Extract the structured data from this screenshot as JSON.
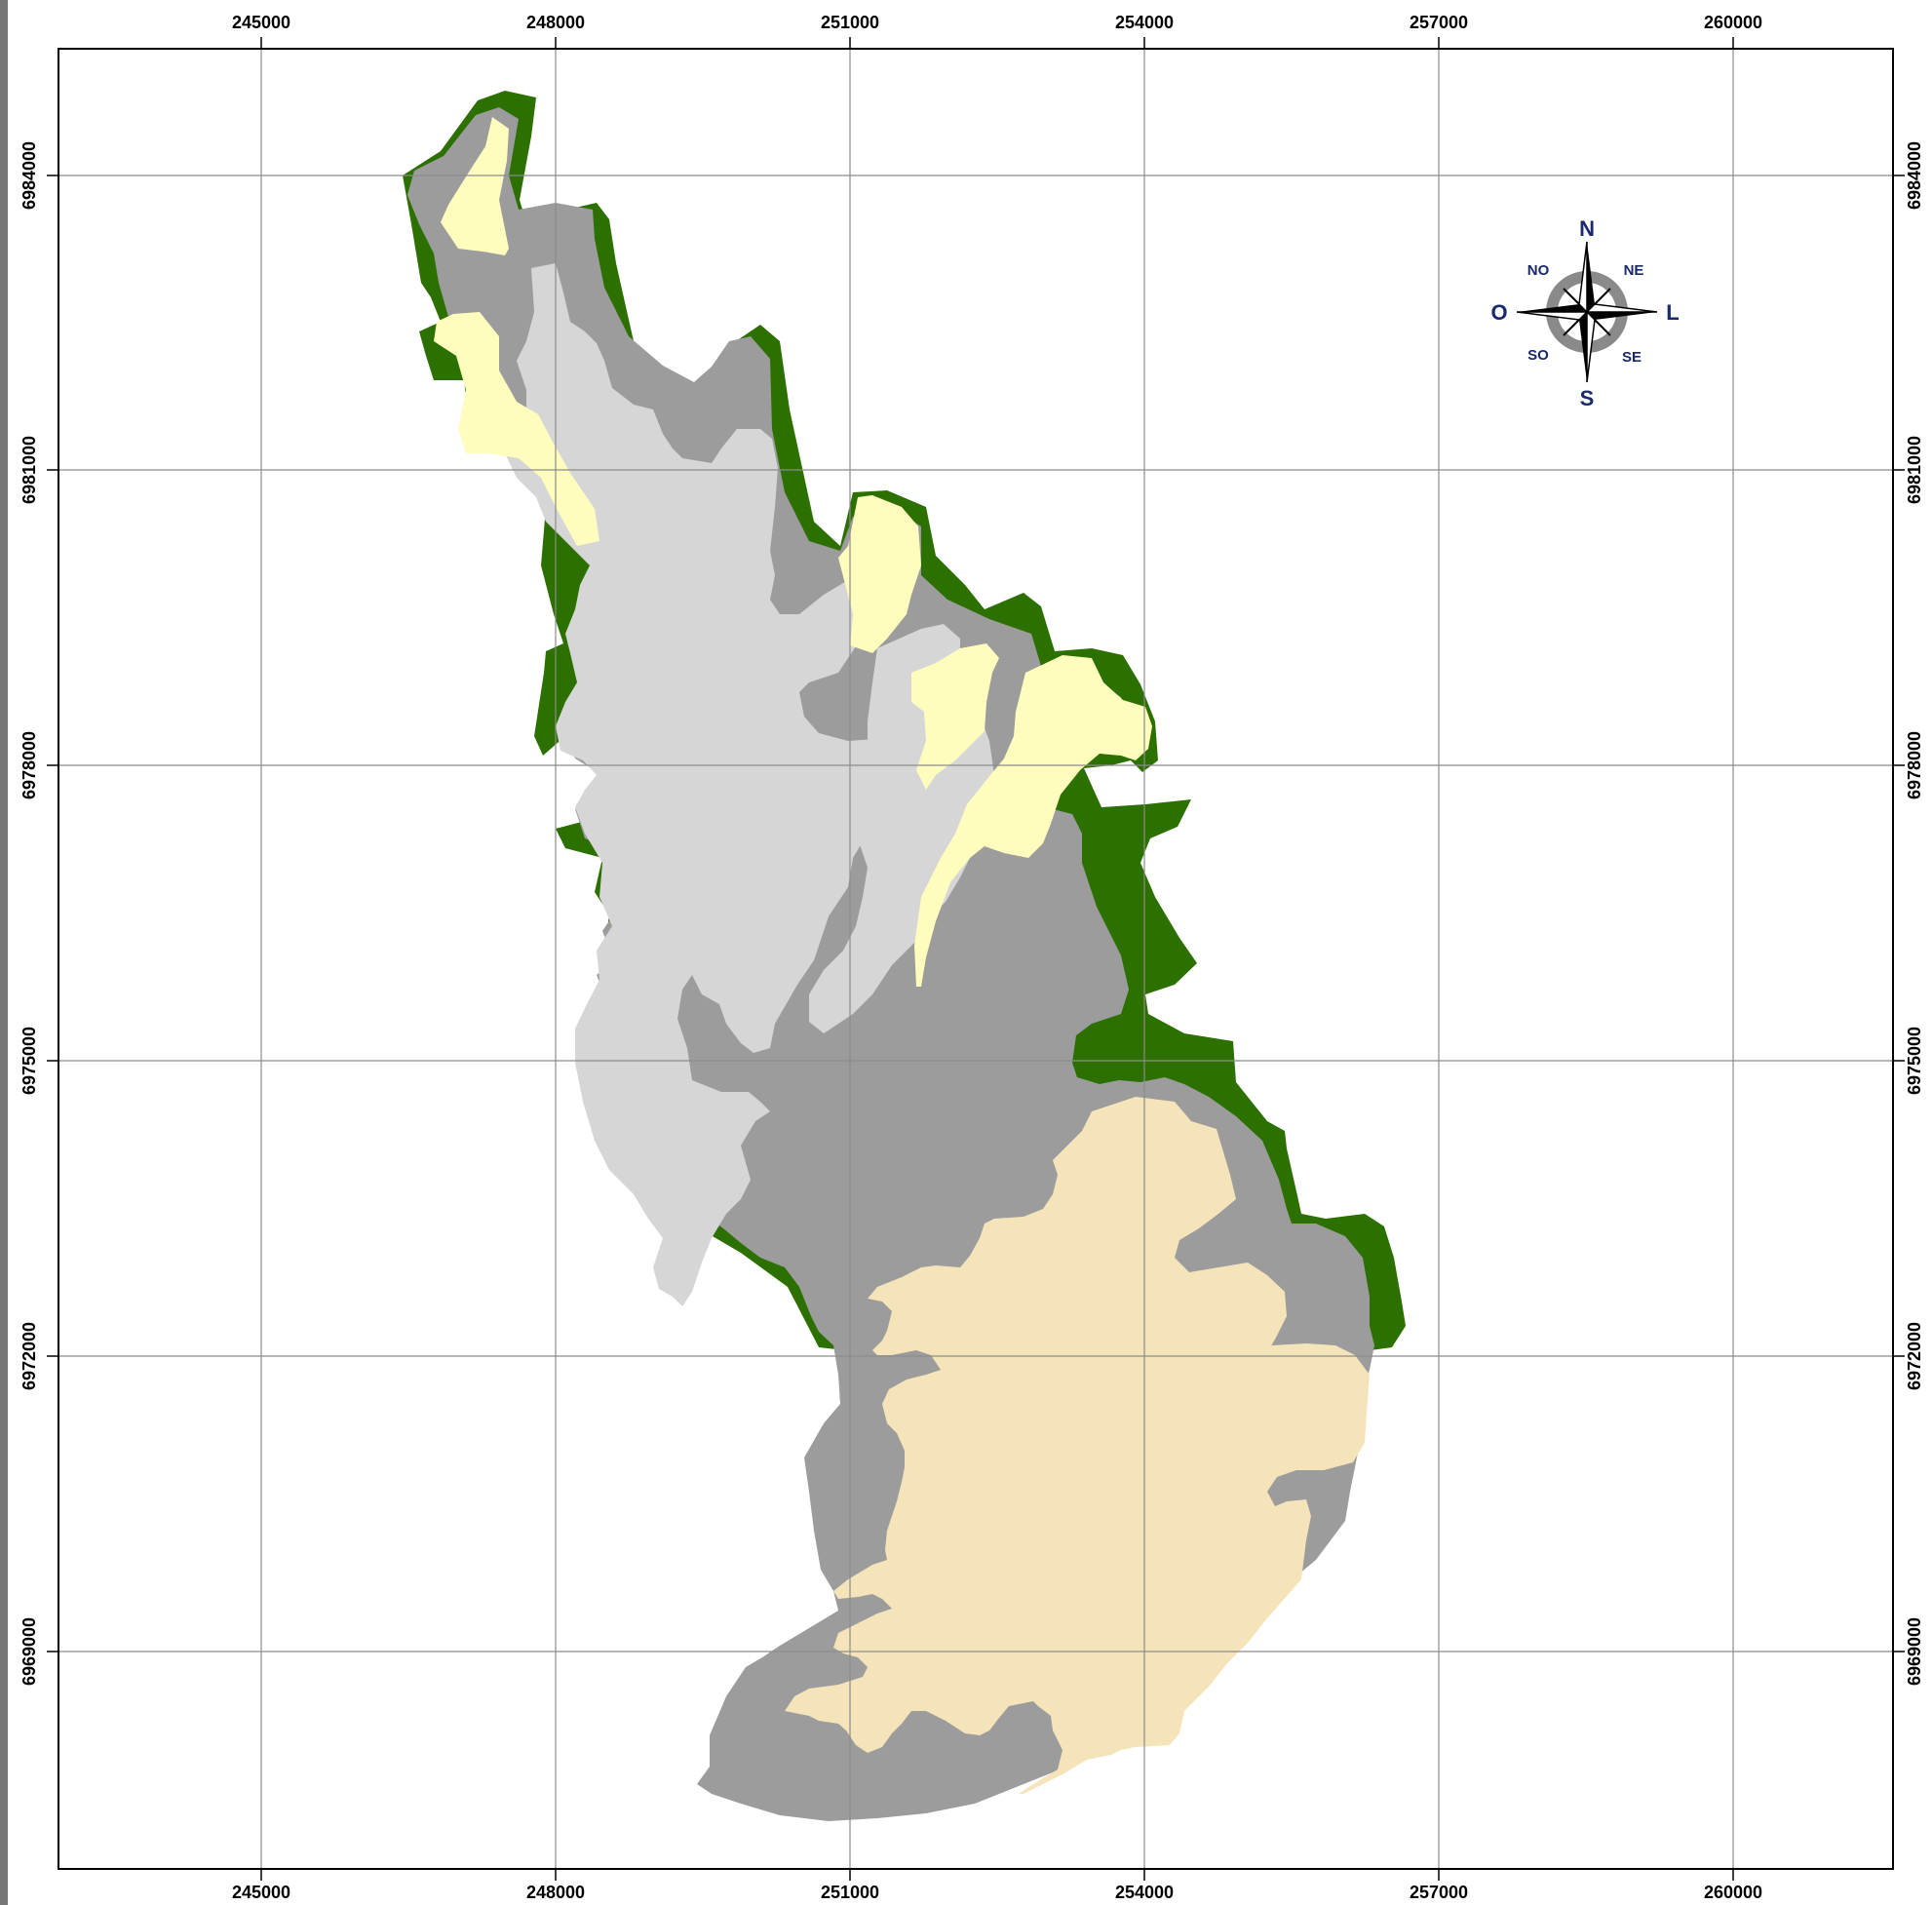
{
  "map": {
    "grid_x_labels": [
      "245000",
      "248000",
      "251000",
      "254000",
      "257000",
      "260000"
    ],
    "grid_y_labels": [
      "6984000",
      "6981000",
      "6978000",
      "6975000",
      "6972000",
      "6969000"
    ],
    "compass": {
      "north": "N",
      "south": "S",
      "east": "L",
      "west": "O",
      "northeast": "NE",
      "northwest": "NO",
      "southeast": "SE",
      "southwest": "SO"
    },
    "colors": {
      "dark_green": "#2c7000",
      "pale_yellow": "#fffdbd",
      "dark_gray": "#9c9c9c",
      "light_gray": "#d6d6d6",
      "beige": "#f5e4b9",
      "grid": "#8c8c8c",
      "frame": "#000000",
      "compass_text": "#1a2a6c"
    }
  }
}
